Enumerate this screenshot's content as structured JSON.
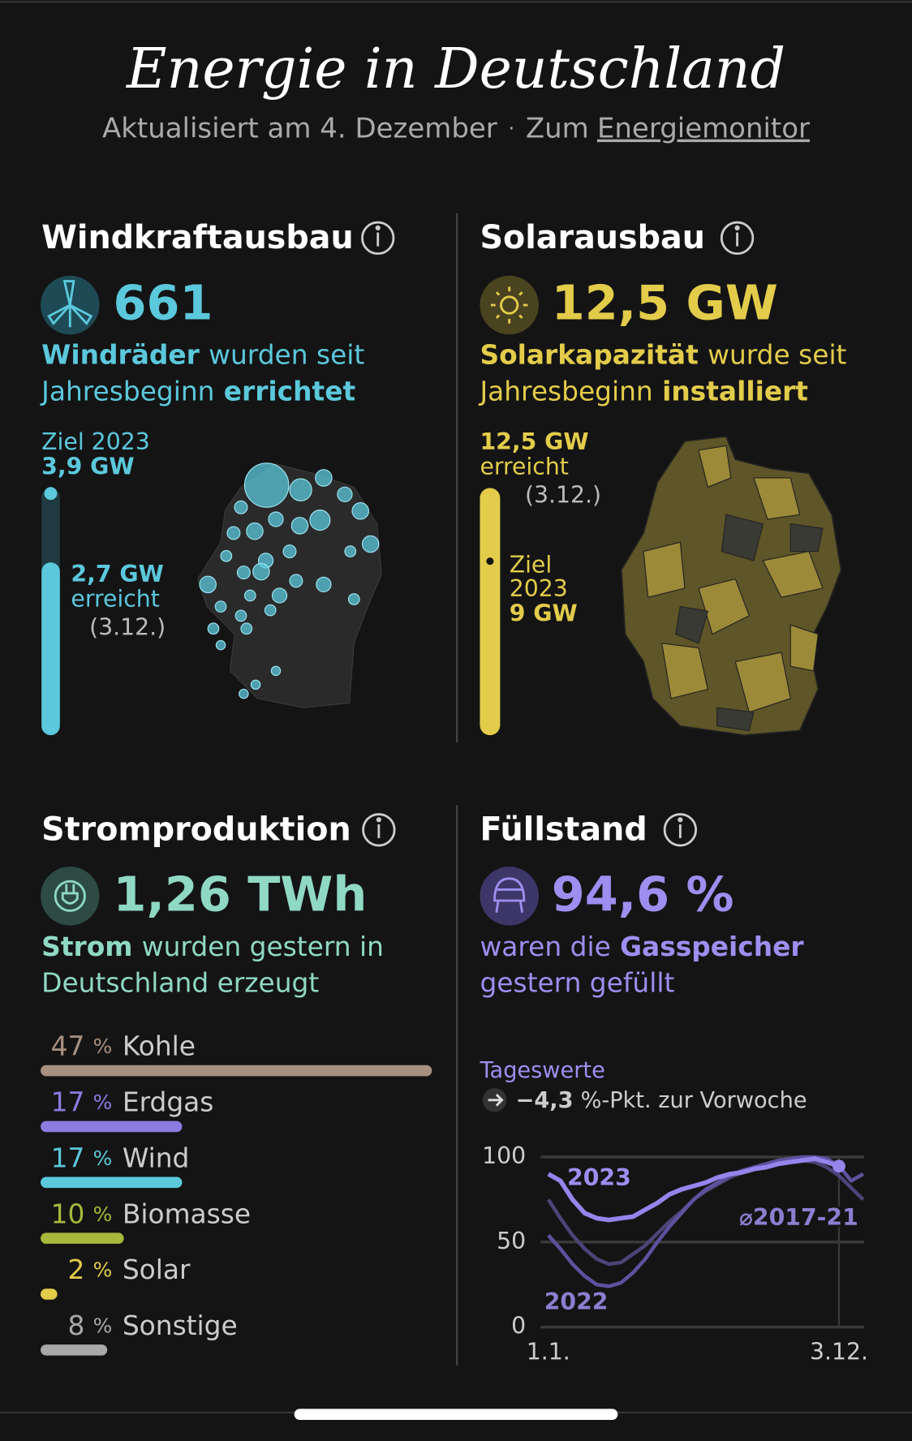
{
  "header": {
    "title": "Energie in Deutschland",
    "updated": "Aktualisiert am 4. Dezember",
    "separator": "·",
    "link_prefix": "Zum",
    "link": "Energiemonitor"
  },
  "wind": {
    "title": "Windkraftausbau",
    "count": "661",
    "desc": [
      "Windräder",
      "wurden seit",
      "Jahresbeginn",
      "errichtet"
    ],
    "goal_label": "Ziel 2023",
    "goal": {
      "value": 3.9,
      "label": "3,9 GW"
    },
    "reached": {
      "value": 2.7,
      "label": "2,7 GW"
    },
    "reached_label": "erreicht",
    "date": "(3.12.)",
    "color": "#5bc8dc"
  },
  "solar": {
    "title": "Solarausbau",
    "count": "12,5 GW",
    "desc": [
      "Solarkapazität",
      "wurde seit",
      "Jahresbeginn",
      "installiert"
    ],
    "reached": {
      "value": 12.5,
      "label": "12,5 GW"
    },
    "reached_label": "erreicht",
    "date": "(3.12.)",
    "goal_label": [
      "Ziel",
      "2023"
    ],
    "goal": {
      "value": 9,
      "label": "9 GW"
    },
    "color": "#e3cc4a"
  },
  "power": {
    "title": "Stromproduktion",
    "count": "1,26 TWh",
    "desc": [
      "Strom",
      "wurden gestern in",
      "Deutschland erzeugt"
    ],
    "color": "#8fd8c4",
    "unit": "%",
    "sources": [
      {
        "name": "Kohle",
        "value": 47,
        "color": "#a89080"
      },
      {
        "name": "Erdgas",
        "value": 17,
        "color": "#8c7be0"
      },
      {
        "name": "Wind",
        "value": 17,
        "color": "#5bc8dc"
      },
      {
        "name": "Biomasse",
        "value": 10,
        "color": "#a8b83a"
      },
      {
        "name": "Solar",
        "value": 2,
        "color": "#e3cc4a"
      },
      {
        "name": "Sonstige",
        "value": 8,
        "color": "#a8a8a8"
      }
    ]
  },
  "gas": {
    "title": "Füllstand",
    "count": "94,6 %",
    "desc": [
      "waren die",
      "Gasspeicher",
      "gestern gefüllt"
    ],
    "color": "#9d8ef0",
    "daily_label": "Tageswerte",
    "weekly_change": {
      "value": -4.3,
      "label": "−4,3"
    },
    "weekly_change_text": "%-Pkt. zur Vorwoche",
    "chart": {
      "type": "line",
      "xlim": [
        -9,
        365
      ],
      "ylim": [
        0,
        100
      ],
      "yticks": [
        0,
        50,
        100
      ],
      "xticks": [
        {
          "value": 0,
          "label": "1.1."
        },
        {
          "value": 336,
          "label": "3.12."
        }
      ],
      "x": [
        0,
        14,
        28,
        42,
        56,
        70,
        84,
        98,
        112,
        126,
        140,
        154,
        168,
        182,
        196,
        210,
        224,
        238,
        252,
        266,
        280,
        294,
        308,
        322,
        336,
        350,
        364
      ],
      "series": [
        {
          "name": "⌀2017-21",
          "color": "#4c4478",
          "values": [
            75,
            64,
            54,
            46,
            40,
            37,
            38,
            43,
            48,
            55,
            62,
            68,
            75,
            80,
            84,
            88,
            91,
            94,
            96,
            97,
            98,
            98,
            97,
            94,
            89,
            82,
            75
          ]
        },
        {
          "name": "2022",
          "color": "#5e519e",
          "values": [
            54,
            46,
            37,
            30,
            25,
            24,
            26,
            32,
            40,
            50,
            59,
            67,
            75,
            81,
            85,
            89,
            92,
            94,
            96,
            98,
            99,
            100,
            100,
            99,
            95,
            86,
            90
          ]
        },
        {
          "name": "2023",
          "color": "#9484ec",
          "values": [
            90,
            86,
            75,
            67,
            64,
            63,
            64,
            65,
            69,
            73,
            78,
            81,
            83,
            85,
            88,
            90,
            91,
            93,
            94,
            96,
            97,
            98,
            99,
            97,
            94.6,
            null,
            null
          ]
        }
      ]
    }
  }
}
